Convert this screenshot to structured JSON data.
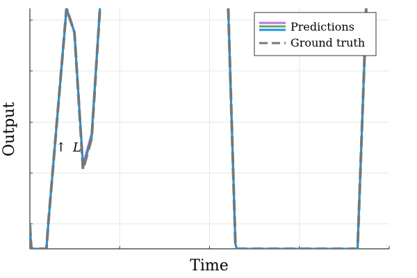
{
  "chart_data": {
    "type": "line",
    "title": "",
    "xlabel": "Time",
    "ylabel": "Output",
    "xlim": [
      0,
      100
    ],
    "ylim": [
      0,
      100
    ],
    "grid": true,
    "legend_position": "top-right",
    "annotation": {
      "arrow": "↑",
      "label": "L",
      "x": 7.5,
      "y": 41.5
    },
    "series": [
      {
        "name": "Predictions",
        "style": "solid",
        "color": "#c070d8",
        "x": [
          0,
          0.2,
          0.4,
          4.6,
          5.2,
          10.2,
          12.4,
          14.8,
          17.2,
          19.5,
          21.5,
          55.2,
          57.2,
          57.6,
          91.2,
          93.2,
          93.6
        ],
        "y": [
          10,
          5,
          0,
          0,
          12,
          100,
          90,
          35,
          48,
          100,
          null,
          100,
          2,
          0,
          0,
          82,
          100
        ]
      },
      {
        "name": "",
        "style": "solid",
        "color": "#60a860",
        "x": [
          0,
          0.2,
          0.4,
          4.6,
          5.2,
          10.2,
          12.4,
          14.8,
          17.2,
          19.5,
          21.5,
          55.2,
          57.2,
          57.6,
          91.2,
          93.2,
          93.6
        ],
        "y": [
          10,
          5,
          0,
          0,
          12,
          100,
          90,
          34,
          46,
          100,
          null,
          100,
          2,
          0,
          0,
          82,
          100
        ]
      },
      {
        "name": "",
        "style": "solid",
        "color": "#2090e0",
        "x": [
          0,
          0.2,
          0.4,
          4.6,
          5.2,
          10.2,
          12.4,
          14.8,
          17.2,
          19.5,
          21.5,
          55.2,
          57.2,
          57.6,
          91.2,
          93.2,
          93.6
        ],
        "y": [
          10,
          5,
          0,
          0,
          12,
          100,
          90,
          34,
          47,
          100,
          null,
          100,
          2,
          0,
          0,
          82,
          100
        ]
      },
      {
        "name": "Ground truth",
        "style": "dashed",
        "color": "#777777",
        "x": [
          0,
          0.2,
          0.4,
          4.6,
          5.2,
          10.2,
          12.4,
          14.8,
          17.2,
          19.5,
          21.5,
          55.2,
          57.2,
          57.6,
          91.2,
          93.2,
          93.6
        ],
        "y": [
          10,
          5,
          0,
          0,
          12,
          100,
          90,
          33,
          46,
          100,
          null,
          100,
          2,
          0,
          0,
          82,
          100
        ]
      }
    ]
  }
}
